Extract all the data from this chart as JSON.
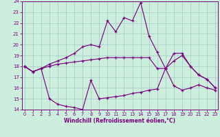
{
  "xlabel": "Windchill (Refroidissement éolien,°C)",
  "x": [
    0,
    1,
    2,
    3,
    4,
    5,
    6,
    7,
    8,
    9,
    10,
    11,
    12,
    13,
    14,
    15,
    16,
    17,
    18,
    19,
    20,
    21,
    22,
    23
  ],
  "line1": [
    18.0,
    17.5,
    17.8,
    18.0,
    18.2,
    18.3,
    18.4,
    18.5,
    18.6,
    18.7,
    18.8,
    18.8,
    18.8,
    18.8,
    18.8,
    18.8,
    17.8,
    17.8,
    18.5,
    19.0,
    18.0,
    17.2,
    16.8,
    16.0
  ],
  "line2": [
    18.0,
    17.5,
    17.8,
    18.2,
    18.5,
    18.8,
    19.2,
    19.8,
    20.0,
    19.8,
    22.2,
    21.2,
    22.5,
    22.2,
    23.9,
    20.8,
    19.3,
    17.8,
    19.2,
    19.2,
    18.0,
    17.2,
    16.8,
    16.0
  ],
  "line3": [
    18.0,
    17.5,
    17.8,
    15.0,
    14.5,
    14.3,
    14.2,
    14.0,
    16.7,
    15.0,
    15.1,
    15.2,
    15.3,
    15.5,
    15.6,
    15.8,
    15.9,
    17.8,
    16.2,
    15.8,
    16.0,
    16.3,
    16.0,
    15.8
  ],
  "line_color": "#7b0080",
  "bg_color": "#cceedd",
  "grid_color": "#aacccc",
  "ylim": [
    14,
    24
  ],
  "yticks": [
    14,
    15,
    16,
    17,
    18,
    19,
    20,
    21,
    22,
    23,
    24
  ]
}
